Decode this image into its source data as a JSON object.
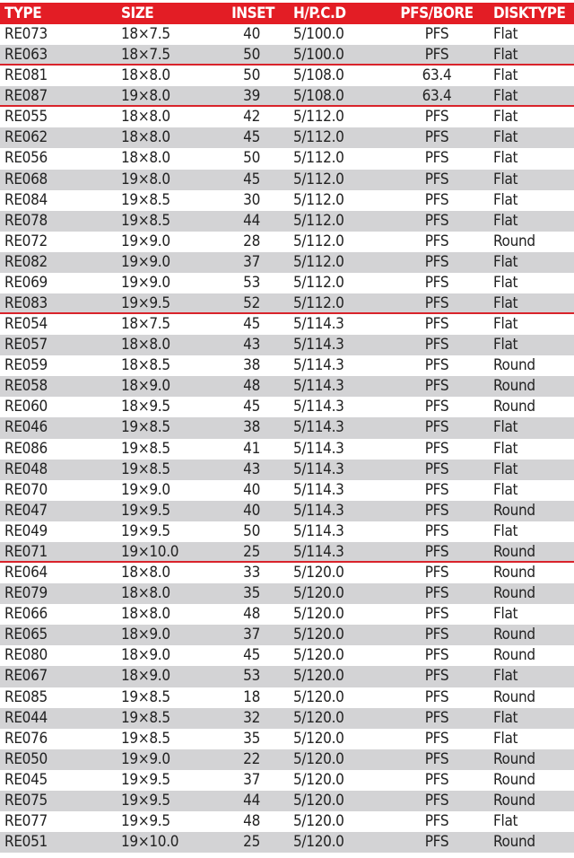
{
  "colors": {
    "header_bg": "#e31d25",
    "alt_row": "#d3d3d5",
    "separator": "#d9232b"
  },
  "headers": [
    "TYPE",
    "SIZE",
    "INSET",
    "H/P.C.D",
    "PFS/BORE",
    "DISKTYPE"
  ],
  "rows": [
    [
      "RE073",
      "18×7.5",
      "40",
      "5/100.0",
      "PFS",
      "Flat"
    ],
    [
      "RE063",
      "18×7.5",
      "50",
      "5/100.0",
      "PFS",
      "Flat"
    ],
    [
      "RE081",
      "18×8.0",
      "50",
      "5/108.0",
      "63.4",
      "Flat"
    ],
    [
      "RE087",
      "19×8.0",
      "39",
      "5/108.0",
      "63.4",
      "Flat"
    ],
    [
      "RE055",
      "18×8.0",
      "42",
      "5/112.0",
      "PFS",
      "Flat"
    ],
    [
      "RE062",
      "18×8.0",
      "45",
      "5/112.0",
      "PFS",
      "Flat"
    ],
    [
      "RE056",
      "18×8.0",
      "50",
      "5/112.0",
      "PFS",
      "Flat"
    ],
    [
      "RE068",
      "19×8.0",
      "45",
      "5/112.0",
      "PFS",
      "Flat"
    ],
    [
      "RE084",
      "19×8.5",
      "30",
      "5/112.0",
      "PFS",
      "Flat"
    ],
    [
      "RE078",
      "19×8.5",
      "44",
      "5/112.0",
      "PFS",
      "Flat"
    ],
    [
      "RE072",
      "19×9.0",
      "28",
      "5/112.0",
      "PFS",
      "Round"
    ],
    [
      "RE082",
      "19×9.0",
      "37",
      "5/112.0",
      "PFS",
      "Flat"
    ],
    [
      "RE069",
      "19×9.0",
      "53",
      "5/112.0",
      "PFS",
      "Flat"
    ],
    [
      "RE083",
      "19×9.5",
      "52",
      "5/112.0",
      "PFS",
      "Flat"
    ],
    [
      "RE054",
      "18×7.5",
      "45",
      "5/114.3",
      "PFS",
      "Flat"
    ],
    [
      "RE057",
      "18×8.0",
      "43",
      "5/114.3",
      "PFS",
      "Flat"
    ],
    [
      "RE059",
      "18×8.5",
      "38",
      "5/114.3",
      "PFS",
      "Round"
    ],
    [
      "RE058",
      "18×9.0",
      "48",
      "5/114.3",
      "PFS",
      "Round"
    ],
    [
      "RE060",
      "18×9.5",
      "45",
      "5/114.3",
      "PFS",
      "Round"
    ],
    [
      "RE046",
      "19×8.5",
      "38",
      "5/114.3",
      "PFS",
      "Flat"
    ],
    [
      "RE086",
      "19×8.5",
      "41",
      "5/114.3",
      "PFS",
      "Flat"
    ],
    [
      "RE048",
      "19×8.5",
      "43",
      "5/114.3",
      "PFS",
      "Flat"
    ],
    [
      "RE070",
      "19×9.0",
      "40",
      "5/114.3",
      "PFS",
      "Flat"
    ],
    [
      "RE047",
      "19×9.5",
      "40",
      "5/114.3",
      "PFS",
      "Round"
    ],
    [
      "RE049",
      "19×9.5",
      "50",
      "5/114.3",
      "PFS",
      "Flat"
    ],
    [
      "RE071",
      "19×10.0",
      "25",
      "5/114.3",
      "PFS",
      "Round"
    ],
    [
      "RE064",
      "18×8.0",
      "33",
      "5/120.0",
      "PFS",
      "Round"
    ],
    [
      "RE079",
      "18×8.0",
      "35",
      "5/120.0",
      "PFS",
      "Round"
    ],
    [
      "RE066",
      "18×8.0",
      "48",
      "5/120.0",
      "PFS",
      "Flat"
    ],
    [
      "RE065",
      "18×9.0",
      "37",
      "5/120.0",
      "PFS",
      "Round"
    ],
    [
      "RE080",
      "18×9.0",
      "45",
      "5/120.0",
      "PFS",
      "Round"
    ],
    [
      "RE067",
      "18×9.0",
      "53",
      "5/120.0",
      "PFS",
      "Flat"
    ],
    [
      "RE085",
      "19×8.5",
      "18",
      "5/120.0",
      "PFS",
      "Round"
    ],
    [
      "RE044",
      "19×8.5",
      "32",
      "5/120.0",
      "PFS",
      "Flat"
    ],
    [
      "RE076",
      "19×8.5",
      "35",
      "5/120.0",
      "PFS",
      "Flat"
    ],
    [
      "RE050",
      "19×9.0",
      "22",
      "5/120.0",
      "PFS",
      "Round"
    ],
    [
      "RE045",
      "19×9.5",
      "37",
      "5/120.0",
      "PFS",
      "Round"
    ],
    [
      "RE075",
      "19×9.5",
      "44",
      "5/120.0",
      "PFS",
      "Round"
    ],
    [
      "RE077",
      "19×9.5",
      "48",
      "5/120.0",
      "PFS",
      "Flat"
    ],
    [
      "RE051",
      "19×10.0",
      "25",
      "5/120.0",
      "PFS",
      "Round"
    ]
  ]
}
